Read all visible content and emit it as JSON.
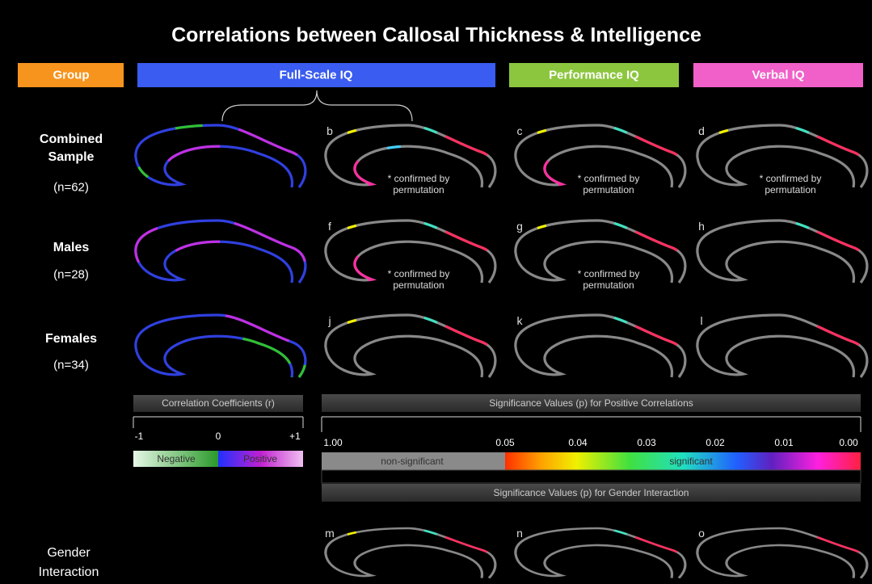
{
  "title": "Correlations between Callosal Thickness & Intelligence",
  "headers": [
    "Group",
    "Full-Scale IQ",
    "Performance IQ",
    "Verbal IQ"
  ],
  "rows": [
    {
      "label": "Combined Sample",
      "n": "(n=62)",
      "panels": [
        {
          "letter": "b",
          "note": "* confirmed by permutation"
        },
        {
          "letter": "c",
          "note": "* confirmed by permutation"
        },
        {
          "letter": "d",
          "note": "* confirmed by permutation"
        }
      ]
    },
    {
      "label": "Males",
      "n": "(n=28)",
      "panels": [
        {
          "letter": "f",
          "note": "* confirmed by permutation"
        },
        {
          "letter": "g",
          "note": "* confirmed by permutation"
        },
        {
          "letter": "h"
        }
      ]
    },
    {
      "label": "Females",
      "n": "(n=34)",
      "panels": [
        {
          "letter": "j"
        },
        {
          "letter": "k"
        },
        {
          "letter": "l"
        }
      ]
    }
  ],
  "legend": {
    "correlation": {
      "title": "Correlation Coefficients (r)",
      "ticks": [
        "-1",
        "0",
        "+1"
      ],
      "negative": "Negative",
      "positive": "Positive"
    },
    "significance": {
      "title": "Significance Values (p) for Positive Correlations",
      "ticks": [
        "1.00",
        "0.05",
        "0.04",
        "0.03",
        "0.02",
        "0.01",
        "0.00"
      ],
      "nonsig": "non-significant",
      "sig": "significant"
    },
    "gender_title": "Significance Values (p) for Gender Interaction"
  },
  "gender": {
    "label": "Gender Interaction",
    "panels": [
      {
        "letter": "m"
      },
      {
        "letter": "n"
      },
      {
        "letter": "o"
      }
    ]
  }
}
